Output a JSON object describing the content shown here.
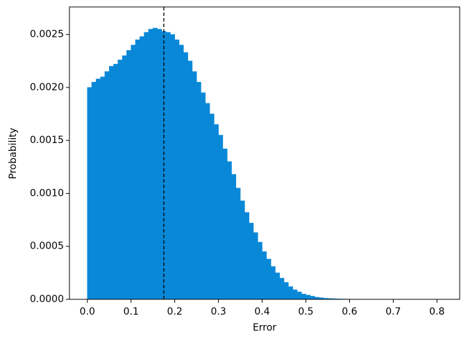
{
  "chart_data": {
    "type": "histogram",
    "x_label": "Error",
    "y_label": "Probability",
    "color": "#0a88d8",
    "bins": [
      0.0,
      0.01,
      0.02,
      0.03,
      0.04,
      0.05,
      0.06,
      0.07,
      0.08,
      0.09,
      0.1,
      0.11,
      0.12,
      0.13,
      0.14,
      0.15,
      0.16,
      0.17,
      0.18,
      0.19,
      0.2,
      0.21,
      0.22,
      0.23,
      0.24,
      0.25,
      0.26,
      0.27,
      0.28,
      0.29,
      0.3,
      0.31,
      0.32,
      0.33,
      0.34,
      0.35,
      0.36,
      0.37,
      0.38,
      0.39,
      0.4,
      0.41,
      0.42,
      0.43,
      0.44,
      0.45,
      0.46,
      0.47,
      0.48,
      0.49,
      0.5,
      0.51,
      0.52,
      0.53,
      0.54,
      0.55,
      0.56,
      0.57,
      0.58,
      0.59,
      0.6,
      0.61,
      0.62,
      0.63,
      0.64,
      0.65,
      0.66,
      0.67,
      0.68,
      0.69,
      0.7,
      0.71,
      0.72,
      0.73,
      0.74,
      0.75,
      0.76,
      0.77,
      0.78,
      0.79,
      0.8,
      0.81,
      0.82
    ],
    "values": [
      0.002,
      0.00205,
      0.00208,
      0.0021,
      0.00215,
      0.0022,
      0.00222,
      0.00226,
      0.0023,
      0.00235,
      0.0024,
      0.00245,
      0.00248,
      0.00252,
      0.00255,
      0.00256,
      0.00255,
      0.00253,
      0.00252,
      0.0025,
      0.00245,
      0.0024,
      0.00233,
      0.00225,
      0.00215,
      0.00205,
      0.00195,
      0.00185,
      0.00175,
      0.00165,
      0.00155,
      0.00142,
      0.0013,
      0.00118,
      0.00105,
      0.00093,
      0.00082,
      0.00072,
      0.00063,
      0.00054,
      0.00045,
      0.00038,
      0.00031,
      0.00025,
      0.0002,
      0.00016,
      0.00012,
      9e-05,
      7e-05,
      5e-05,
      4e-05,
      3e-05,
      2e-05,
      1.5e-05,
      1e-05,
      8e-06,
      6e-06,
      4e-06,
      3e-06,
      2e-06,
      1.5e-06,
      1e-06,
      1e-06,
      8e-07,
      7e-07,
      6e-07,
      5e-07,
      4e-07,
      4e-07,
      3e-07,
      3e-07,
      2e-07,
      2e-07,
      2e-07,
      2e-07,
      2e-07,
      2e-07,
      2e-07,
      2e-07,
      2e-07,
      2e-07,
      2e-07
    ],
    "vline": 0.175,
    "xlim": [
      -0.041,
      0.852
    ],
    "ylim": [
      0,
      0.00276
    ],
    "xticks": [
      {
        "value": 0,
        "label": "0.0"
      },
      {
        "value": 0.1,
        "label": "0.1"
      },
      {
        "value": 0.2,
        "label": "0.2"
      },
      {
        "value": 0.3,
        "label": "0.3"
      },
      {
        "value": 0.4,
        "label": "0.4"
      },
      {
        "value": 0.5,
        "label": "0.5"
      },
      {
        "value": 0.6,
        "label": "0.6"
      },
      {
        "value": 0.7,
        "label": "0.7"
      },
      {
        "value": 0.8,
        "label": "0.8"
      }
    ],
    "yticks": [
      {
        "value": 0,
        "label": "0.0000"
      },
      {
        "value": 0.0005,
        "label": "0.0005"
      },
      {
        "value": 0.001,
        "label": "0.0010"
      },
      {
        "value": 0.0015,
        "label": "0.0015"
      },
      {
        "value": 0.002,
        "label": "0.0020"
      },
      {
        "value": 0.0025,
        "label": "0.0025"
      }
    ]
  }
}
